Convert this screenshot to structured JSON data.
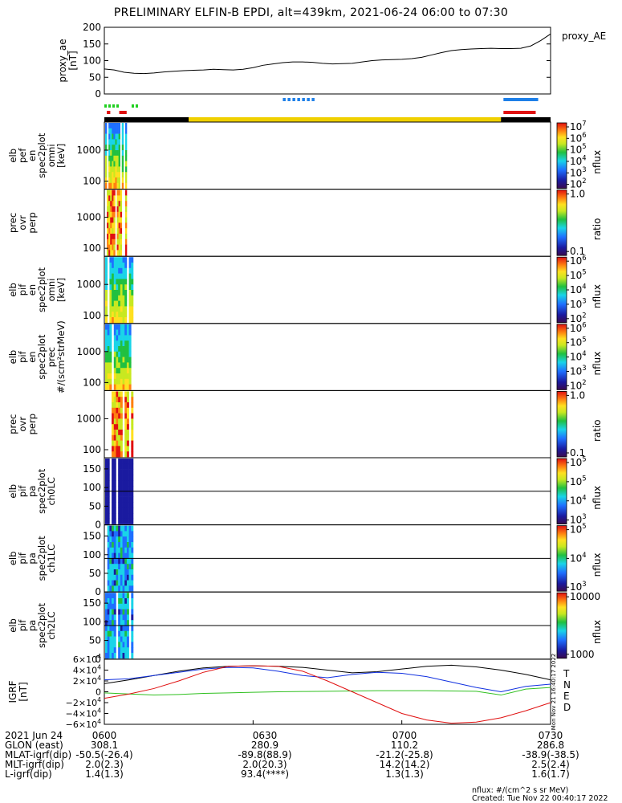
{
  "title": "PRELIMINARY ELFIN-B EPDI, alt=439km, 2021-06-24 06:00 to 07:30",
  "proxy_ae": {
    "ylabel": "proxy_ae\n[nT]",
    "legend": "proxy_AE",
    "ticks": [
      "0",
      "50",
      "100",
      "150",
      "200"
    ]
  },
  "stamp": "Mon Nov 21 16:40:17 2022",
  "panels": [
    {
      "id": "elb_pef_en_spec2plot_omni",
      "ylabel": [
        "elb",
        "pef",
        "en",
        "spec2plot",
        "omni",
        "[keV]"
      ],
      "ticks": [
        "100",
        "1000"
      ],
      "cb_ticks": [
        "10^2",
        "10^3",
        "10^4",
        "10^5",
        "10^6",
        "10^7"
      ],
      "cb_label": "nflux",
      "cb": "jet"
    },
    {
      "id": "prec_ovr_perp_1",
      "ylabel": [
        "prec",
        "ovr",
        "perp"
      ],
      "ticks": [
        "100",
        "1000"
      ],
      "cb_ticks": [
        "0.1",
        "1.0"
      ],
      "cb_label": "ratio",
      "cb": "jet"
    },
    {
      "id": "elb_pif_en_spec2plot_omni",
      "ylabel": [
        "elb",
        "pif",
        "en",
        "spec2plot",
        "omni",
        "[keV]"
      ],
      "ticks": [
        "100",
        "1000"
      ],
      "cb_ticks": [
        "10^2",
        "10^3",
        "10^4",
        "10^5",
        "10^6"
      ],
      "cb_label": "nflux",
      "cb": "jet"
    },
    {
      "id": "elb_pif_en_spec2plot_prec",
      "ylabel": [
        "elb",
        "pif",
        "en",
        "spec2plot",
        "prec",
        "#/(scm²strMeV)"
      ],
      "ticks": [
        "100",
        "1000"
      ],
      "cb_ticks": [
        "10^2",
        "10^3",
        "10^4",
        "10^5",
        "10^6"
      ],
      "cb_label": "nflux",
      "cb": "jet"
    },
    {
      "id": "prec_ovr_perp_2",
      "ylabel": [
        "prec",
        "ovr",
        "perp"
      ],
      "ticks": [
        "100",
        "1000"
      ],
      "cb_ticks": [
        "0.1",
        "1.0"
      ],
      "cb_label": "ratio",
      "cb": "jet"
    },
    {
      "id": "elb_pif_pa_spec2plot_ch0LC",
      "ylabel": [
        "elb",
        "pif",
        "pa",
        "spec2plot",
        "ch0LC"
      ],
      "ticks": [
        "0",
        "50",
        "100",
        "150"
      ],
      "cb_ticks": [
        "10^3",
        "10^4",
        "10^5",
        "10^5"
      ],
      "cb_label": "nflux",
      "cb": "jet"
    },
    {
      "id": "elb_pif_pa_spec2plot_ch1LC",
      "ylabel": [
        "elb",
        "pif",
        "pa",
        "spec2plot",
        "ch1LC"
      ],
      "ticks": [
        "0",
        "50",
        "100",
        "150"
      ],
      "cb_ticks": [
        "10^3",
        "10^4",
        "10^5"
      ],
      "cb_label": "nflux",
      "cb": "jet"
    },
    {
      "id": "elb_pif_pa_spec2plot_ch2LC",
      "ylabel": [
        "elb",
        "pif",
        "pa",
        "spec2plot",
        "ch2LC"
      ],
      "ticks": [
        "0",
        "50",
        "100",
        "150"
      ],
      "cb_ticks": [
        "1000",
        "10000"
      ],
      "cb_label": "nflux",
      "cb": "jet"
    }
  ],
  "igrf": {
    "ylabel": "IGRF\n[nT]",
    "ticks": [
      "−6×10^4",
      "−4×10^4",
      "−2×10^4",
      "0",
      "2×10^4",
      "4×10^4",
      "6×10^4"
    ],
    "legend": [
      {
        "name": "T",
        "color": "#000000"
      },
      {
        "name": "N",
        "color": "#1030e0"
      },
      {
        "name": "E",
        "color": "#30c020"
      },
      {
        "name": "D",
        "color": "#e01010"
      }
    ]
  },
  "footer": {
    "rows": [
      {
        "label": "2021 Jun 24",
        "values": [
          "0600",
          "0630",
          "0700",
          "0730"
        ]
      },
      {
        "label": "GLON (east)",
        "values": [
          "308.1",
          "280.9",
          "110.2",
          "286.8"
        ]
      },
      {
        "label": "MLAT-igrf(dip)",
        "values": [
          "-50.5(-26.4)",
          "-89.8(88.9)",
          "-21.2(-25.8)",
          "-38.9(-38.5)"
        ]
      },
      {
        "label": "MLT-igrf(dip)",
        "values": [
          "2.0(2.3)",
          "2.0(20.3)",
          "14.2(14.2)",
          "2.5(2.4)"
        ]
      },
      {
        "label": "L-igrf(dip)",
        "values": [
          "1.4(1.3)",
          "93.4(****)",
          "1.3(1.3)",
          "1.6(1.7)"
        ]
      }
    ],
    "note1": "nflux: #/(cm^2 s sr MeV)",
    "note2": "Created: Tue Nov 22 00:40:17 2022"
  },
  "colors": {
    "sunlight": "#f0d000",
    "shadow": "#000000",
    "blue_marker": "#1e7fe8",
    "green_marker": "#20d020",
    "red_marker": "#e01010"
  },
  "chart_data": {
    "type": "line",
    "title": "PRELIMINARY ELFIN-B EPDI, alt=439km, 2021-06-24 06:00 to 07:30",
    "x_tick_labels": [
      "0600",
      "0630",
      "0700",
      "0730"
    ],
    "xlim_minutes": [
      0,
      90
    ],
    "proxy_ae": {
      "ylabel": "proxy_ae [nT]",
      "ylim": [
        0,
        200
      ],
      "x": [
        0,
        2,
        4,
        6,
        8,
        10,
        12,
        14,
        16,
        18,
        20,
        22,
        24,
        26,
        28,
        30,
        32,
        34,
        36,
        38,
        40,
        42,
        44,
        46,
        48,
        50,
        52,
        54,
        56,
        58,
        60,
        62,
        64,
        66,
        68,
        70,
        72,
        74,
        76,
        78,
        80,
        82,
        84,
        86,
        88,
        90
      ],
      "values": [
        75,
        72,
        65,
        62,
        61,
        63,
        66,
        68,
        70,
        71,
        72,
        74,
        73,
        72,
        74,
        79,
        86,
        90,
        94,
        96,
        96,
        95,
        92,
        90,
        91,
        92,
        96,
        100,
        102,
        103,
        104,
        106,
        110,
        117,
        124,
        130,
        133,
        135,
        136,
        137,
        136,
        136,
        137,
        144,
        160,
        180
      ]
    },
    "igrf": {
      "ylabel": "IGRF [nT]",
      "ylim": [
        -60000,
        60000
      ],
      "x": [
        0,
        5,
        10,
        15,
        20,
        25,
        30,
        35,
        40,
        45,
        50,
        55,
        60,
        65,
        70,
        75,
        80,
        85,
        90
      ],
      "series": [
        {
          "name": "T",
          "values": [
            15000,
            22000,
            30000,
            38000,
            44000,
            47000,
            48000,
            47000,
            45000,
            40000,
            35000,
            37000,
            42000,
            47000,
            49000,
            46000,
            40000,
            32000,
            22000
          ]
        },
        {
          "name": "N",
          "values": [
            22000,
            24000,
            30000,
            36000,
            42000,
            45000,
            44000,
            38000,
            30000,
            26000,
            32000,
            36000,
            34000,
            28000,
            18000,
            8000,
            0,
            10000,
            14000
          ]
        },
        {
          "name": "E",
          "values": [
            -2000,
            -4000,
            -6000,
            -5000,
            -3000,
            -2000,
            -1000,
            0,
            500,
            1000,
            1500,
            2000,
            2000,
            2000,
            1500,
            1000,
            -6000,
            5000,
            8000
          ]
        },
        {
          "name": "D",
          "values": [
            -12000,
            -4000,
            6000,
            20000,
            36000,
            47000,
            48000,
            47000,
            38000,
            20000,
            0,
            -20000,
            -40000,
            -52000,
            -58000,
            -56000,
            -48000,
            -35000,
            -20000
          ]
        }
      ]
    },
    "orbit_bar": {
      "segments": [
        {
          "state": "shadow",
          "start": 0,
          "end": 17
        },
        {
          "state": "sunlight",
          "start": 17,
          "end": 80
        },
        {
          "state": "shadow",
          "start": 80,
          "end": 90
        }
      ]
    },
    "markers": [
      {
        "color": "green",
        "start": 0,
        "end": 2.5
      },
      {
        "color": "green",
        "start": 5.5,
        "end": 7
      },
      {
        "color": "red",
        "start": 0.5,
        "end": 1.2
      },
      {
        "color": "red",
        "start": 3,
        "end": 4.5
      },
      {
        "color": "blue",
        "start": 36,
        "end": 42
      },
      {
        "color": "blue",
        "start": 80.5,
        "end": 87.5
      },
      {
        "color": "red",
        "start": 80.5,
        "end": 87
      }
    ]
  }
}
